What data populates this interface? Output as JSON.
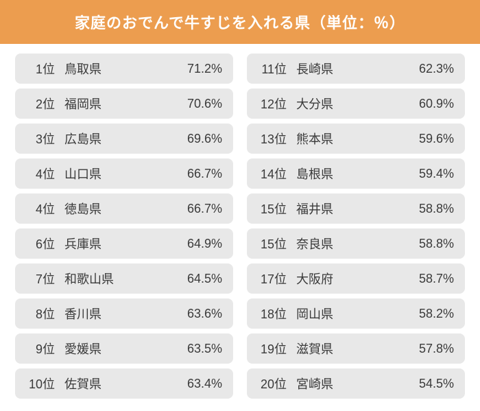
{
  "title": "家庭のおでんで牛すじを入れる県（単位：％）",
  "colors": {
    "header_bg": "#ec9d4f",
    "header_text": "#ffffff",
    "row_bg": "#e8e8e8",
    "row_text": "#3a3a3a",
    "page_bg": "#ffffff"
  },
  "leftColumn": [
    {
      "rank": "1位",
      "pref": "鳥取県",
      "pct": "71.2%"
    },
    {
      "rank": "2位",
      "pref": "福岡県",
      "pct": "70.6%"
    },
    {
      "rank": "3位",
      "pref": "広島県",
      "pct": "69.6%"
    },
    {
      "rank": "4位",
      "pref": "山口県",
      "pct": "66.7%"
    },
    {
      "rank": "4位",
      "pref": "徳島県",
      "pct": "66.7%"
    },
    {
      "rank": "6位",
      "pref": "兵庫県",
      "pct": "64.9%"
    },
    {
      "rank": "7位",
      "pref": "和歌山県",
      "pct": "64.5%"
    },
    {
      "rank": "8位",
      "pref": "香川県",
      "pct": "63.6%"
    },
    {
      "rank": "9位",
      "pref": "愛媛県",
      "pct": "63.5%"
    },
    {
      "rank": "10位",
      "pref": "佐賀県",
      "pct": "63.4%"
    }
  ],
  "rightColumn": [
    {
      "rank": "11位",
      "pref": "長崎県",
      "pct": "62.3%"
    },
    {
      "rank": "12位",
      "pref": "大分県",
      "pct": "60.9%"
    },
    {
      "rank": "13位",
      "pref": "熊本県",
      "pct": "59.6%"
    },
    {
      "rank": "14位",
      "pref": "島根県",
      "pct": "59.4%"
    },
    {
      "rank": "15位",
      "pref": "福井県",
      "pct": "58.8%"
    },
    {
      "rank": "15位",
      "pref": "奈良県",
      "pct": "58.8%"
    },
    {
      "rank": "17位",
      "pref": "大阪府",
      "pct": "58.7%"
    },
    {
      "rank": "18位",
      "pref": "岡山県",
      "pct": "58.2%"
    },
    {
      "rank": "19位",
      "pref": "滋賀県",
      "pct": "57.8%"
    },
    {
      "rank": "20位",
      "pref": "宮崎県",
      "pct": "54.5%"
    }
  ]
}
